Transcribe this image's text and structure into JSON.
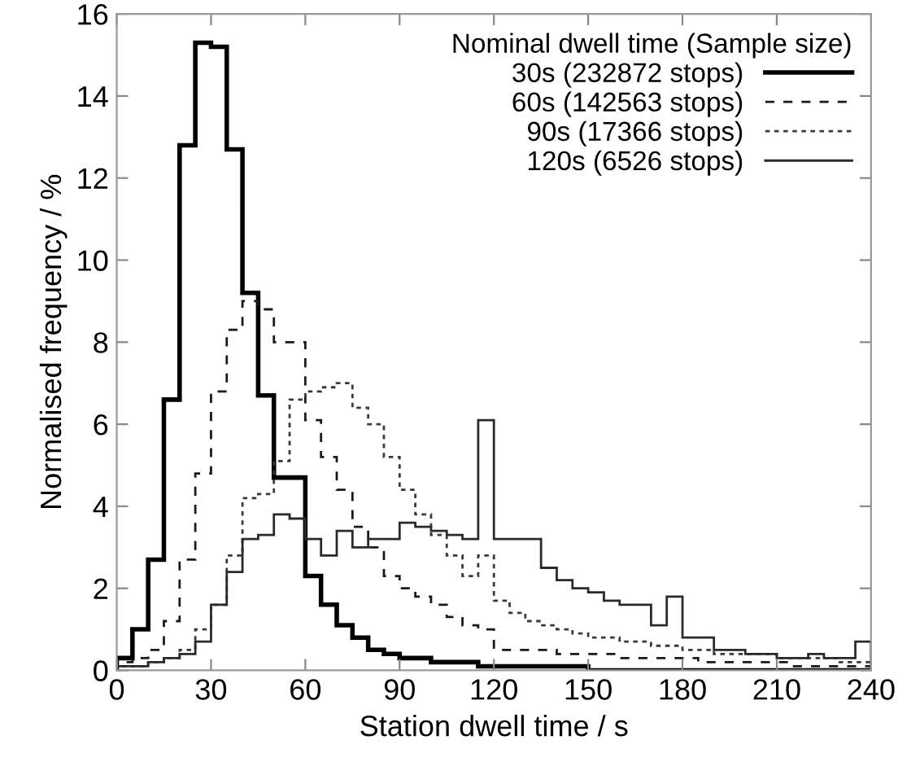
{
  "chart_data": {
    "type": "histogram",
    "xlabel": "Station dwell time / s",
    "ylabel": "Normalised frequency / %",
    "legend_title": "Nominal dwell time (Sample size)",
    "legend": "top right",
    "grid": false,
    "bins": [
      0,
      5,
      10,
      15,
      20,
      25,
      30,
      35,
      40,
      45,
      50,
      55,
      60,
      65,
      70,
      75,
      80,
      85,
      90,
      95,
      100,
      105,
      110,
      115,
      120,
      125,
      130,
      135,
      140,
      145,
      150,
      155,
      160,
      165,
      170,
      175,
      180,
      185,
      190,
      195,
      200,
      205,
      210,
      215,
      220,
      225,
      230,
      235,
      240
    ],
    "xlim": [
      0,
      240
    ],
    "xticks": [
      0,
      30,
      60,
      90,
      120,
      150,
      180,
      210,
      240
    ],
    "ylim": [
      0,
      16
    ],
    "yticks": [
      0,
      2,
      4,
      6,
      8,
      10,
      12,
      14,
      16
    ],
    "series": [
      {
        "name": "30s (232872 stops)",
        "color": "#000000",
        "line_style": "solid",
        "values": [
          0.3,
          1.0,
          2.7,
          6.6,
          12.8,
          15.3,
          15.2,
          12.7,
          9.2,
          6.7,
          4.7,
          4.7,
          2.3,
          1.6,
          1.1,
          0.8,
          0.5,
          0.4,
          0.3,
          0.3,
          0.2,
          0.2,
          0.2,
          0.1,
          0.1,
          0.1,
          0.1,
          0.1,
          0.1,
          0.1,
          0.0,
          0.0,
          0.0,
          0.0,
          0.0,
          0.0,
          0.0,
          0.0,
          0.0,
          0.0,
          0.0,
          0.0,
          0.0,
          0.0,
          0.0,
          0.0,
          0.0,
          0.0
        ]
      },
      {
        "name": "60s (142563 stops)",
        "color": "#1a1a1a",
        "line_style": "dashed",
        "values": [
          0.2,
          0.3,
          0.5,
          1.2,
          2.7,
          4.8,
          6.8,
          8.3,
          9.0,
          8.8,
          8.0,
          8.0,
          6.1,
          5.2,
          4.4,
          3.5,
          3.0,
          2.3,
          2.0,
          1.8,
          1.6,
          1.3,
          1.1,
          1.0,
          0.5,
          0.5,
          0.5,
          0.5,
          0.4,
          0.4,
          0.4,
          0.4,
          0.3,
          0.3,
          0.3,
          0.3,
          0.3,
          0.2,
          0.2,
          0.2,
          0.2,
          0.2,
          0.2,
          0.1,
          0.1,
          0.1,
          0.1,
          0.1
        ]
      },
      {
        "name": "90s (17366 stops)",
        "color": "#3a3a3a",
        "line_style": "dotted",
        "values": [
          0.1,
          0.1,
          0.2,
          0.3,
          0.5,
          1.0,
          1.6,
          2.8,
          4.2,
          4.3,
          5.1,
          6.6,
          6.8,
          6.9,
          7.0,
          6.4,
          6.0,
          5.2,
          4.4,
          3.8,
          3.3,
          2.8,
          2.3,
          2.8,
          1.7,
          1.4,
          1.2,
          1.1,
          1.0,
          0.9,
          0.8,
          0.8,
          0.7,
          0.7,
          0.6,
          0.6,
          0.5,
          0.5,
          0.4,
          0.4,
          0.4,
          0.4,
          0.3,
          0.3,
          0.3,
          0.3,
          0.2,
          0.2
        ]
      },
      {
        "name": "120s (6526 stops)",
        "color": "#2a2a2a",
        "line_style": "solid",
        "values": [
          0.1,
          0.1,
          0.2,
          0.3,
          0.4,
          0.7,
          1.6,
          2.4,
          3.2,
          3.3,
          3.8,
          3.7,
          3.2,
          2.8,
          3.4,
          3.0,
          3.2,
          3.2,
          3.6,
          3.5,
          3.4,
          3.3,
          3.2,
          6.1,
          3.2,
          3.2,
          3.2,
          2.5,
          2.2,
          2.0,
          1.9,
          1.7,
          1.6,
          1.6,
          1.1,
          1.8,
          0.8,
          0.8,
          0.5,
          0.5,
          0.4,
          0.4,
          0.3,
          0.3,
          0.4,
          0.3,
          0.3,
          0.7
        ]
      }
    ]
  }
}
